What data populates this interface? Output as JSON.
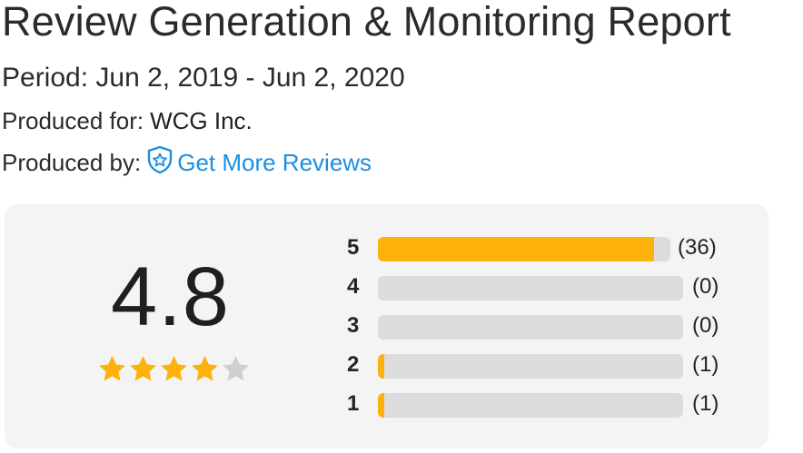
{
  "report": {
    "title": "Review Generation & Monitoring Report",
    "period": "Period: Jun 2, 2019 - Jun 2, 2020",
    "produced_for_label": "Produced for:",
    "produced_for_value": "WCG Inc.",
    "produced_by_label": "Produced by:",
    "produced_by_brand": "Get More Reviews",
    "brand_icon": "shield-star-icon"
  },
  "colors": {
    "accent_brand": "#1c8fe0",
    "star_filled": "#fdb10b",
    "star_empty": "#cfcfcf",
    "bar_fill": "#fdb10b",
    "bar_track": "#dcdcdc",
    "card_bg": "#f4f4f4"
  },
  "summary": {
    "average": "4.8",
    "stars_filled": 4,
    "stars_total": 5
  },
  "distribution": [
    {
      "stars": "5",
      "count_label": "(36)",
      "count": 36,
      "fill_fraction": 0.945
    },
    {
      "stars": "4",
      "count_label": "(0)",
      "count": 0,
      "fill_fraction": 0
    },
    {
      "stars": "3",
      "count_label": "(0)",
      "count": 0,
      "fill_fraction": 0
    },
    {
      "stars": "2",
      "count_label": "(1)",
      "count": 1,
      "fill_fraction": 0.02
    },
    {
      "stars": "1",
      "count_label": "(1)",
      "count": 1,
      "fill_fraction": 0.02
    }
  ]
}
